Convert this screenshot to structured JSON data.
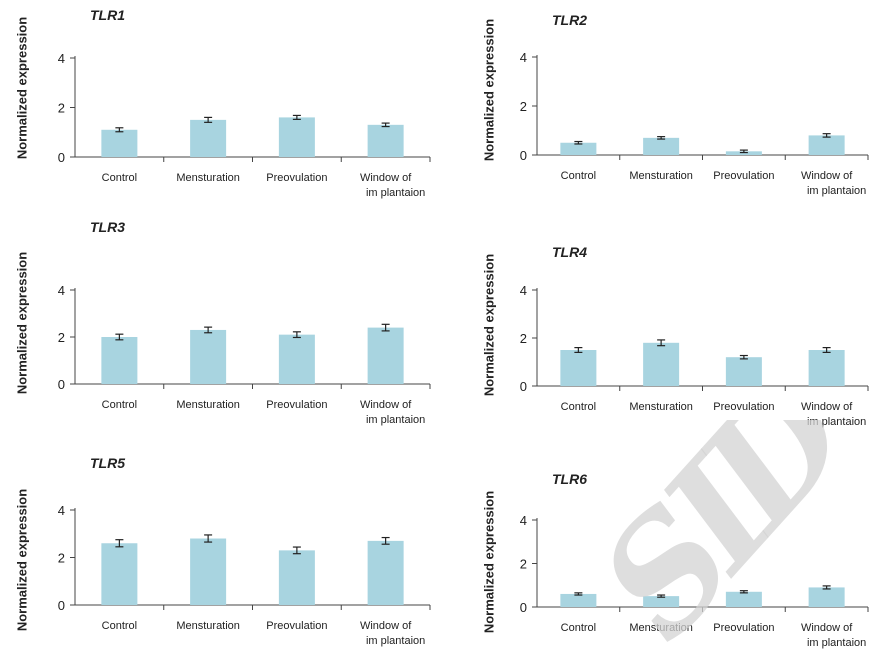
{
  "chart_data": [
    {
      "type": "bar",
      "title": "TLR1",
      "ylabel": "Normalized expression",
      "categories": [
        "Control",
        "Mensturation",
        "Preovulation",
        "Window of\nim plantaion"
      ],
      "values": [
        1.1,
        1.5,
        1.6,
        1.3
      ],
      "errors": [
        0.08,
        0.1,
        0.08,
        0.07
      ],
      "ylim": [
        0,
        4
      ],
      "yticks": [
        0,
        2,
        4
      ],
      "grid": false
    },
    {
      "type": "bar",
      "title": "TLR2",
      "ylabel": "Normalized expression",
      "categories": [
        "Control",
        "Mensturation",
        "Preovulation",
        "Window of\nim plantaion"
      ],
      "values": [
        0.5,
        0.7,
        0.15,
        0.8
      ],
      "errors": [
        0.05,
        0.05,
        0.05,
        0.07
      ],
      "ylim": [
        0,
        4
      ],
      "yticks": [
        0,
        2,
        4
      ],
      "grid": false
    },
    {
      "type": "bar",
      "title": "TLR3",
      "ylabel": "Normalized expression",
      "categories": [
        "Control",
        "Mensturation",
        "Preovulation",
        "Window of\nim plantaion"
      ],
      "values": [
        2.0,
        2.3,
        2.1,
        2.4
      ],
      "errors": [
        0.12,
        0.12,
        0.12,
        0.14
      ],
      "ylim": [
        0,
        4
      ],
      "yticks": [
        0,
        2,
        4
      ],
      "grid": false
    },
    {
      "type": "bar",
      "title": "TLR4",
      "ylabel": "Normalized expression",
      "categories": [
        "Control",
        "Mensturation",
        "Preovulation",
        "Window of\nim plantaion"
      ],
      "values": [
        1.5,
        1.8,
        1.2,
        1.5
      ],
      "errors": [
        0.1,
        0.12,
        0.07,
        0.1
      ],
      "ylim": [
        0,
        4
      ],
      "yticks": [
        0,
        2,
        4
      ],
      "grid": false
    },
    {
      "type": "bar",
      "title": "TLR5",
      "ylabel": "Normalized expression",
      "categories": [
        "Control",
        "Mensturation",
        "Preovulation",
        "Window of\nim plantaion"
      ],
      "values": [
        2.6,
        2.8,
        2.3,
        2.7
      ],
      "errors": [
        0.15,
        0.15,
        0.14,
        0.14
      ],
      "ylim": [
        0,
        4
      ],
      "yticks": [
        0,
        2,
        4
      ],
      "grid": false
    },
    {
      "type": "bar",
      "title": "TLR6",
      "ylabel": "Normalized expression",
      "categories": [
        "Control",
        "Mensturation",
        "Preovulation",
        "Window of\nim plantaion"
      ],
      "values": [
        0.6,
        0.5,
        0.7,
        0.9
      ],
      "errors": [
        0.05,
        0.05,
        0.05,
        0.07
      ],
      "ylim": [
        0,
        4
      ],
      "yticks": [
        0,
        2,
        4
      ],
      "grid": false
    }
  ],
  "watermark": {
    "text": "SID",
    "color": "#d8d8d8"
  },
  "colors": {
    "bar": "#a8d4e0",
    "axis": "#444444",
    "text": "#222222"
  }
}
